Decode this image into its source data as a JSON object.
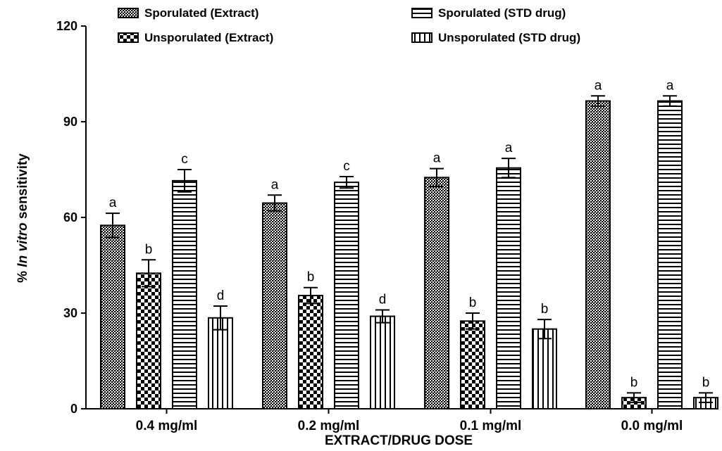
{
  "chart_data": {
    "type": "bar",
    "xlabel": "EXTRACT/DRUG DOSE",
    "ylabel_prefix": "% ",
    "ylabel_italic": "In vitro",
    "ylabel_suffix": " sensitivity",
    "ylim": [
      0,
      120
    ],
    "yticks": [
      "0",
      "30",
      "60",
      "90",
      "120"
    ],
    "categories": [
      "0.4 mg/ml",
      "0.2 mg/ml",
      "0.1 mg/ml",
      "0.0 mg/ml"
    ],
    "legend_position": "top",
    "grid": false,
    "series": [
      {
        "name": "Sporulated (Extract)",
        "pattern": "dense-cross",
        "values": [
          57.5,
          64.5,
          72.5,
          96.5
        ],
        "errors": [
          3.8,
          2.5,
          2.8,
          1.6
        ],
        "labels": [
          "a",
          "a",
          "a",
          "a"
        ]
      },
      {
        "name": "Unsporulated (Extract)",
        "pattern": "checker",
        "values": [
          42.5,
          35.5,
          27.5,
          3.5
        ],
        "errors": [
          4.2,
          2.5,
          2.5,
          1.5
        ],
        "labels": [
          "b",
          "b",
          "b",
          "b"
        ]
      },
      {
        "name": "Sporulated (STD drug)",
        "pattern": "horizontal",
        "values": [
          71.5,
          71.0,
          75.5,
          96.5
        ],
        "errors": [
          3.5,
          1.8,
          3.0,
          1.6
        ],
        "labels": [
          "c",
          "c",
          "a",
          "a"
        ]
      },
      {
        "name": "Unsporulated (STD drug)",
        "pattern": "vertical",
        "values": [
          28.5,
          29.0,
          25.0,
          3.5
        ],
        "errors": [
          3.7,
          2.0,
          3.0,
          1.5
        ],
        "labels": [
          "d",
          "d",
          "b",
          "b"
        ]
      }
    ]
  }
}
